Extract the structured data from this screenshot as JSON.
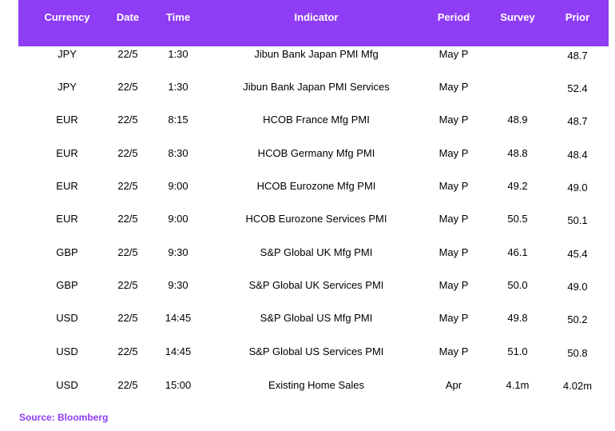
{
  "table": {
    "headers": [
      "Currency",
      "Date",
      "Time",
      "Indicator",
      "Period",
      "Survey",
      "Prior"
    ],
    "rows": [
      [
        "JPY",
        "22/5",
        "1:30",
        "Jibun Bank Japan PMI Mfg",
        "May P",
        "",
        "48.7"
      ],
      [
        "JPY",
        "22/5",
        "1:30",
        "Jibun Bank Japan PMI Services",
        "May P",
        "",
        "52.4"
      ],
      [
        "EUR",
        "22/5",
        "8:15",
        "HCOB France Mfg PMI",
        "May P",
        "48.9",
        "48.7"
      ],
      [
        "EUR",
        "22/5",
        "8:30",
        "HCOB Germany Mfg PMI",
        "May P",
        "48.8",
        "48.4"
      ],
      [
        "EUR",
        "22/5",
        "9:00",
        "HCOB Eurozone Mfg PMI",
        "May P",
        "49.2",
        "49.0"
      ],
      [
        "EUR",
        "22/5",
        "9:00",
        "HCOB Eurozone Services PMI",
        "May P",
        "50.5",
        "50.1"
      ],
      [
        "GBP",
        "22/5",
        "9:30",
        "S&P Global UK Mfg PMI",
        "May P",
        "46.1",
        "45.4"
      ],
      [
        "GBP",
        "22/5",
        "9:30",
        "S&P Global UK Services PMI",
        "May P",
        "50.0",
        "49.0"
      ],
      [
        "USD",
        "22/5",
        "14:45",
        "S&P Global US Mfg PMI",
        "May P",
        "49.8",
        "50.2"
      ],
      [
        "USD",
        "22/5",
        "14:45",
        "S&P Global US Services PMI",
        "May P",
        "51.0",
        "50.8"
      ],
      [
        "USD",
        "22/5",
        "15:00",
        "Existing Home Sales",
        "Apr",
        "4.1m",
        "4.02m"
      ]
    ]
  },
  "source": "Source: Bloomberg",
  "colors": {
    "header_bg": "#8f3cf5",
    "header_text": "#ffffff",
    "source_text": "#8f3cf5"
  }
}
